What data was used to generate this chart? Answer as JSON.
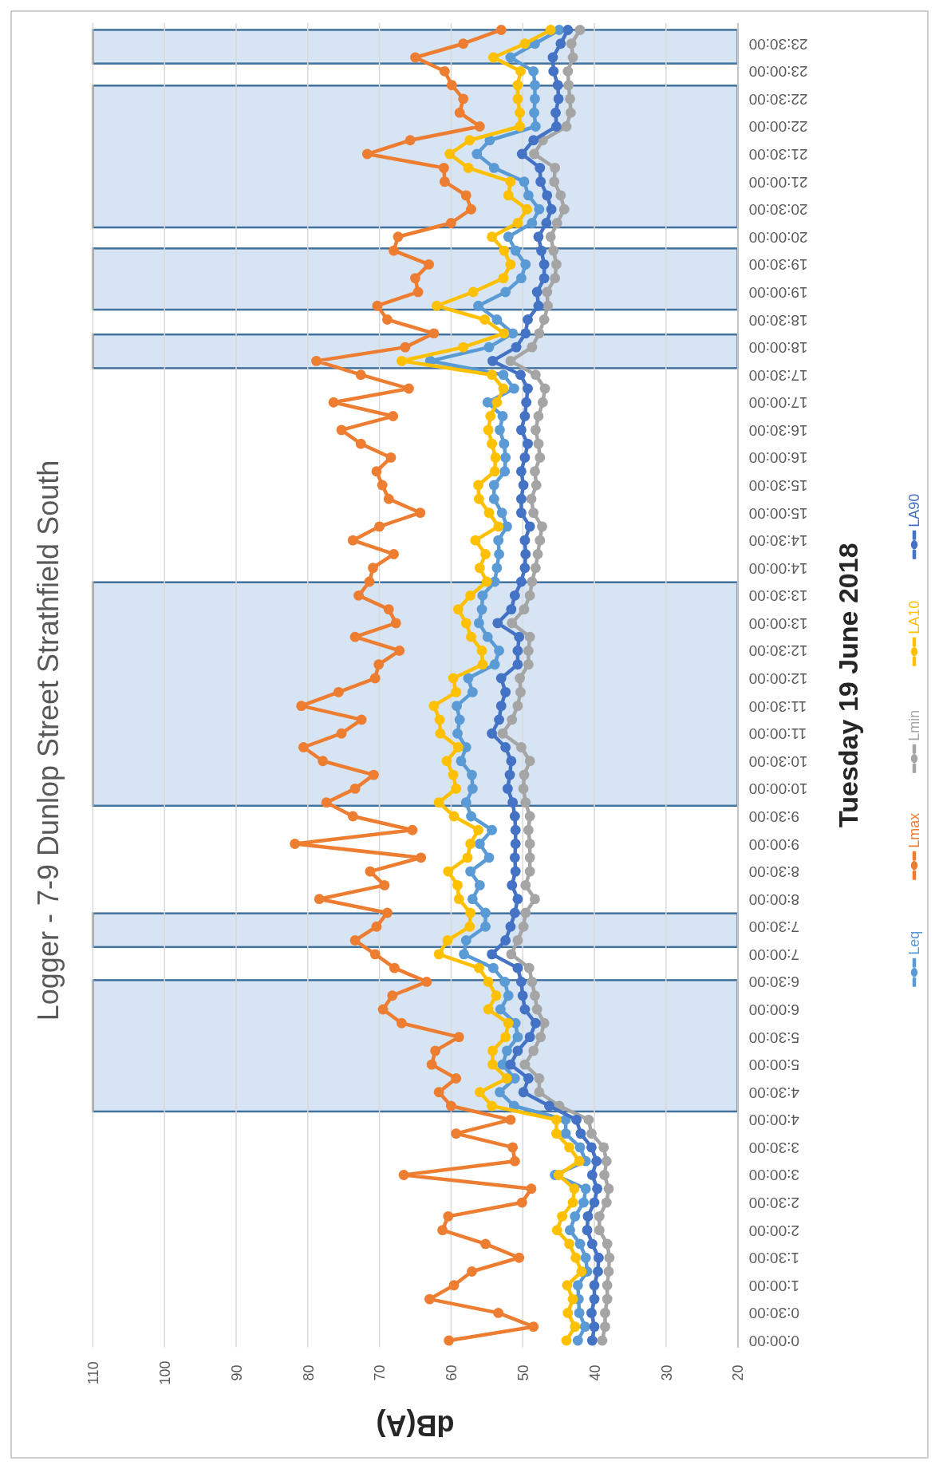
{
  "chart_data": {
    "type": "line",
    "title": "Logger - 7-9 Dunlop Street Strathfield South",
    "xlabel": "dB(A)",
    "ylabel": "Tuesday 19 June 2018",
    "xlim": [
      110,
      20
    ],
    "xticks": [
      110,
      100,
      90,
      80,
      70,
      60,
      50,
      40,
      30,
      20
    ],
    "ylim": [
      -0.125,
      23.875
    ],
    "yticks": [
      {
        "value": 0,
        "label": "0:00:00"
      },
      {
        "value": 0.5,
        "label": "0:30:00"
      },
      {
        "value": 1,
        "label": "1:00:00"
      },
      {
        "value": 1.5,
        "label": "1:30:00"
      },
      {
        "value": 2,
        "label": "2:00:00"
      },
      {
        "value": 2.5,
        "label": "2:30:00"
      },
      {
        "value": 3,
        "label": "3:00:00"
      },
      {
        "value": 3.5,
        "label": "3:30:00"
      },
      {
        "value": 4,
        "label": "4:00:00"
      },
      {
        "value": 4.5,
        "label": "4:30:00"
      },
      {
        "value": 5,
        "label": "5:00:00"
      },
      {
        "value": 5.5,
        "label": "5:30:00"
      },
      {
        "value": 6,
        "label": "6:00:00"
      },
      {
        "value": 6.5,
        "label": "6:30:00"
      },
      {
        "value": 7,
        "label": "7:00:00"
      },
      {
        "value": 7.5,
        "label": "7:30:00"
      },
      {
        "value": 8,
        "label": "8:00:00"
      },
      {
        "value": 8.5,
        "label": "8:30:00"
      },
      {
        "value": 9,
        "label": "9:00:00"
      },
      {
        "value": 9.5,
        "label": "9:30:00"
      },
      {
        "value": 10,
        "label": "10:00:00"
      },
      {
        "value": 10.5,
        "label": "10:30:00"
      },
      {
        "value": 11,
        "label": "11:00:00"
      },
      {
        "value": 11.5,
        "label": "11:30:00"
      },
      {
        "value": 12,
        "label": "12:00:00"
      },
      {
        "value": 12.5,
        "label": "12:30:00"
      },
      {
        "value": 13,
        "label": "13:00:00"
      },
      {
        "value": 13.5,
        "label": "13:30:00"
      },
      {
        "value": 14,
        "label": "14:00:00"
      },
      {
        "value": 14.5,
        "label": "14:30:00"
      },
      {
        "value": 15,
        "label": "15:00:00"
      },
      {
        "value": 15.5,
        "label": "15:30:00"
      },
      {
        "value": 16,
        "label": "16:00:00"
      },
      {
        "value": 16.5,
        "label": "16:30:00"
      },
      {
        "value": 17,
        "label": "17:00:00"
      },
      {
        "value": 17.5,
        "label": "17:30:00"
      },
      {
        "value": 18,
        "label": "18:00:00"
      },
      {
        "value": 18.5,
        "label": "18:30:00"
      },
      {
        "value": 19,
        "label": "19:00:00"
      },
      {
        "value": 19.5,
        "label": "19:30:00"
      },
      {
        "value": 20,
        "label": "20:00:00"
      },
      {
        "value": 20.5,
        "label": "20:30:00"
      },
      {
        "value": 21,
        "label": "21:00:00"
      },
      {
        "value": 21.5,
        "label": "21:30:00"
      },
      {
        "value": 22,
        "label": "22:00:00"
      },
      {
        "value": 22.5,
        "label": "22:30:00"
      },
      {
        "value": 23,
        "label": "23:00:00"
      },
      {
        "value": 23.5,
        "label": "23:30:00"
      }
    ],
    "grid": "x",
    "legend": "right",
    "marker": "circle",
    "line_style": "solid",
    "bands": [
      {
        "axis": "y",
        "from": 4.15,
        "to": 6.53,
        "color": "#d6e4f4"
      },
      {
        "axis": "y",
        "from": 7.13,
        "to": 7.74,
        "color": "#d6e4f4"
      },
      {
        "axis": "y",
        "from": 9.69,
        "to": 13.74,
        "color": "#d6e4f4"
      },
      {
        "axis": "y",
        "from": 17.62,
        "to": 18.23,
        "color": "#d6e4f4"
      },
      {
        "axis": "y",
        "from": 18.68,
        "to": 19.79,
        "color": "#d6e4f4"
      },
      {
        "axis": "y",
        "from": 20.17,
        "to": 22.74,
        "color": "#d6e4f4"
      },
      {
        "axis": "y",
        "from": 23.14,
        "to": 23.75,
        "color": "#d6e4f4"
      }
    ],
    "series": [
      {
        "name": "Leq",
        "color": "#5b9bd5",
        "x": [
          42.3,
          41.3,
          42.1,
          42.2,
          42.3,
          41.0,
          41.2,
          42.0,
          43.4,
          42.7,
          41.5,
          41.2,
          45.5,
          41.2,
          42.0,
          44.0,
          44.0,
          51.2,
          53.2,
          51.1,
          52.8,
          52.2,
          50.7,
          51.0,
          53.1,
          52.0,
          52.5,
          54.1,
          58.2,
          57.9,
          55.2,
          55.2,
          57.0,
          56.0,
          57.3,
          54.7,
          56.0,
          54.3,
          57.2,
          57.9,
          57.0,
          57.1,
          58.6,
          57.9,
          59.1,
          58.8,
          59.2,
          57.0,
          57.6,
          53.9,
          53.3,
          54.9,
          56.1,
          55.7,
          55.6,
          53.9,
          53.6,
          53.3,
          53.4,
          52.2,
          52.9,
          54.0,
          54.0,
          52.5,
          52.4,
          52.6,
          53.2,
          52.8,
          54.9,
          51.2,
          52.7,
          62.9,
          54.7,
          51.4,
          53.6,
          56.2,
          52.4,
          50.2,
          49.6,
          51.0,
          52.0,
          48.7,
          47.7,
          49.2,
          49.8,
          54.0,
          56.4,
          54.6,
          48.2,
          48.4,
          48.3,
          48.3,
          48.5,
          51.7,
          48.3,
          44.9
        ],
        "values": [
          0,
          0.25,
          0.5,
          0.75,
          1,
          1.25,
          1.5,
          1.75,
          2,
          2.25,
          2.5,
          2.75,
          3,
          3.25,
          3.5,
          3.75,
          4,
          4.25,
          4.5,
          4.75,
          5,
          5.25,
          5.5,
          5.75,
          6,
          6.25,
          6.5,
          6.75,
          7,
          7.25,
          7.5,
          7.75,
          8,
          8.25,
          8.5,
          8.75,
          9,
          9.25,
          9.5,
          9.75,
          10,
          10.25,
          10.5,
          10.75,
          11,
          11.25,
          11.5,
          11.75,
          12,
          12.25,
          12.5,
          12.75,
          13,
          13.25,
          13.5,
          13.75,
          14,
          14.25,
          14.5,
          14.75,
          15,
          15.25,
          15.5,
          15.75,
          16,
          16.25,
          16.5,
          16.75,
          17,
          17.25,
          17.5,
          17.75,
          18,
          18.25,
          18.5,
          18.75,
          19,
          19.25,
          19.5,
          19.75,
          20,
          20.25,
          20.5,
          20.75,
          21,
          21.25,
          21.5,
          21.75,
          22,
          22.25,
          22.5,
          22.75,
          23,
          23.25,
          23.5,
          23.75
        ]
      },
      {
        "name": "Lmax",
        "color": "#ed7d31",
        "x": [
          60.3,
          48.5,
          53.4,
          63.0,
          59.6,
          57.1,
          50.5,
          55.2,
          61.2,
          60.4,
          50.1,
          48.8,
          66.6,
          51.1,
          51.4,
          59.3,
          51.7,
          60.0,
          61.7,
          59.3,
          62.7,
          62.2,
          58.9,
          66.9,
          69.5,
          68.2,
          63.4,
          67.9,
          70.6,
          73.4,
          70.4,
          68.9,
          78.4,
          69.3,
          71.3,
          64.2,
          81.8,
          65.4,
          73.7,
          77.4,
          73.4,
          70.8,
          77.9,
          80.6,
          75.3,
          72.5,
          80.9,
          75.7,
          70.6,
          70.1,
          67.2,
          73.4,
          67.7,
          68.7,
          72.9,
          71.4,
          70.9,
          68.0,
          73.7,
          70.0,
          64.3,
          68.7,
          69.6,
          70.4,
          68.4,
          72.6,
          75.3,
          68.1,
          76.4,
          65.9,
          72.6,
          78.8,
          66.4,
          62.4,
          68.9,
          70.3,
          64.6,
          65.0,
          63.1,
          68.0,
          67.4,
          60.0,
          57.2,
          57.9,
          60.9,
          61.0,
          71.7,
          65.7,
          56.0,
          58.8,
          58.3,
          59.9,
          60.9,
          65.0,
          58.3,
          53.0
        ],
        "values": [
          0,
          0.25,
          0.5,
          0.75,
          1,
          1.25,
          1.5,
          1.75,
          2,
          2.25,
          2.5,
          2.75,
          3,
          3.25,
          3.5,
          3.75,
          4,
          4.25,
          4.5,
          4.75,
          5,
          5.25,
          5.5,
          5.75,
          6,
          6.25,
          6.5,
          6.75,
          7,
          7.25,
          7.5,
          7.75,
          8,
          8.25,
          8.5,
          8.75,
          9,
          9.25,
          9.5,
          9.75,
          10,
          10.25,
          10.5,
          10.75,
          11,
          11.25,
          11.5,
          11.75,
          12,
          12.25,
          12.5,
          12.75,
          13,
          13.25,
          13.5,
          13.75,
          14,
          14.25,
          14.5,
          14.75,
          15,
          15.25,
          15.5,
          15.75,
          16,
          16.25,
          16.5,
          16.75,
          17,
          17.25,
          17.5,
          17.75,
          18,
          18.25,
          18.5,
          18.75,
          19,
          19.25,
          19.5,
          19.75,
          20,
          20.25,
          20.5,
          20.75,
          21,
          21.25,
          21.5,
          21.75,
          22,
          22.25,
          22.5,
          22.75,
          23,
          23.25,
          23.5,
          23.75
        ]
      },
      {
        "name": "Lmin",
        "color": "#a5a5a5",
        "x": [
          38.9,
          38.5,
          38.5,
          38.2,
          38.2,
          38.0,
          37.9,
          38.2,
          39.3,
          39.3,
          38.3,
          38.0,
          38.6,
          38.3,
          38.7,
          40.4,
          40.8,
          44.9,
          47.7,
          47.7,
          49.7,
          48.5,
          47.5,
          47.0,
          48.0,
          48.3,
          48.7,
          49.1,
          51.6,
          50.7,
          49.9,
          49.6,
          48.3,
          49.6,
          49.0,
          49.0,
          49.0,
          49.2,
          49.0,
          49.6,
          49.9,
          49.8,
          49.0,
          50.2,
          52.8,
          51.5,
          50.7,
          50.3,
          50.4,
          49.2,
          49.2,
          49.0,
          51.5,
          49.8,
          49.0,
          48.7,
          48.2,
          47.9,
          47.6,
          47.3,
          48.5,
          48.8,
          48.1,
          48.3,
          47.6,
          47.8,
          48.2,
          47.8,
          47.2,
          46.9,
          48.2,
          51.7,
          48.7,
          47.7,
          47.0,
          46.5,
          46.6,
          45.5,
          45.3,
          45.7,
          46.1,
          45.2,
          44.2,
          44.7,
          45.6,
          45.5,
          48.4,
          47.2,
          43.9,
          43.3,
          43.4,
          43.6,
          43.7,
          43.0,
          43.2,
          42.0
        ],
        "values": [
          0,
          0.25,
          0.5,
          0.75,
          1,
          1.25,
          1.5,
          1.75,
          2,
          2.25,
          2.5,
          2.75,
          3,
          3.25,
          3.5,
          3.75,
          4,
          4.25,
          4.5,
          4.75,
          5,
          5.25,
          5.5,
          5.75,
          6,
          6.25,
          6.5,
          6.75,
          7,
          7.25,
          7.5,
          7.75,
          8,
          8.25,
          8.5,
          8.75,
          9,
          9.25,
          9.5,
          9.75,
          10,
          10.25,
          10.5,
          10.75,
          11,
          11.25,
          11.5,
          11.75,
          12,
          12.25,
          12.5,
          12.75,
          13,
          13.25,
          13.5,
          13.75,
          14,
          14.25,
          14.5,
          14.75,
          15,
          15.25,
          15.5,
          15.75,
          16,
          16.25,
          16.5,
          16.75,
          17,
          17.25,
          17.5,
          17.75,
          18,
          18.25,
          18.5,
          18.75,
          19,
          19.25,
          19.5,
          19.75,
          20,
          20.25,
          20.5,
          20.75,
          21,
          21.25,
          21.5,
          21.75,
          22,
          22.25,
          22.5,
          22.75,
          23,
          23.25,
          23.5,
          23.75
        ]
      },
      {
        "name": "LA10",
        "color": "#ffc000",
        "x": [
          43.9,
          42.7,
          43.7,
          43.0,
          43.8,
          41.8,
          42.6,
          43.5,
          45.2,
          44.5,
          43.0,
          42.8,
          45.0,
          42.1,
          43.5,
          45.3,
          45.3,
          54.3,
          56.0,
          52.2,
          54.2,
          54.2,
          52.4,
          52.0,
          54.8,
          53.7,
          54.8,
          56.1,
          61.7,
          60.5,
          57.4,
          57.3,
          58.9,
          59.1,
          60.4,
          57.7,
          57.3,
          56.2,
          59.6,
          61.7,
          59.3,
          59.7,
          60.6,
          59.0,
          61.5,
          61.6,
          62.4,
          59.3,
          59.7,
          55.6,
          55.7,
          57.2,
          57.9,
          59.0,
          57.3,
          55.0,
          56.0,
          55.2,
          56.6,
          53.4,
          54.7,
          56.1,
          56.2,
          53.9,
          53.8,
          54.3,
          54.8,
          54.5,
          53.6,
          52.7,
          54.3,
          66.9,
          58.3,
          52.6,
          55.3,
          62.0,
          56.9,
          52.7,
          51.7,
          52.6,
          54.3,
          50.7,
          49.4,
          52.0,
          51.7,
          57.6,
          60.2,
          57.4,
          50.4,
          50.4,
          50.7,
          50.7,
          50.3,
          54.1,
          49.7,
          46.1
        ],
        "values": [
          0,
          0.25,
          0.5,
          0.75,
          1,
          1.25,
          1.5,
          1.75,
          2,
          2.25,
          2.5,
          2.75,
          3,
          3.25,
          3.5,
          3.75,
          4,
          4.25,
          4.5,
          4.75,
          5,
          5.25,
          5.5,
          5.75,
          6,
          6.25,
          6.5,
          6.75,
          7,
          7.25,
          7.5,
          7.75,
          8,
          8.25,
          8.5,
          8.75,
          9,
          9.25,
          9.5,
          9.75,
          10,
          10.25,
          10.5,
          10.75,
          11,
          11.25,
          11.5,
          11.75,
          12,
          12.25,
          12.5,
          12.75,
          13,
          13.25,
          13.5,
          13.75,
          14,
          14.25,
          14.5,
          14.75,
          15,
          15.25,
          15.5,
          15.75,
          16,
          16.25,
          16.5,
          16.75,
          17,
          17.25,
          17.5,
          17.75,
          18,
          18.25,
          18.5,
          18.75,
          19,
          19.25,
          19.5,
          19.75,
          20,
          20.25,
          20.5,
          20.75,
          21,
          21.25,
          21.5,
          21.75,
          22,
          22.25,
          22.5,
          22.75,
          23,
          23.25,
          23.5,
          23.75
        ]
      },
      {
        "name": "LA90",
        "color": "#4472c4",
        "x": [
          40.3,
          40.0,
          40.4,
          40.0,
          40.0,
          39.5,
          39.4,
          40.3,
          41.0,
          40.9,
          40.0,
          39.6,
          40.3,
          39.7,
          40.4,
          41.9,
          42.5,
          46.3,
          49.9,
          49.2,
          51.7,
          50.7,
          49.0,
          48.2,
          49.7,
          50.0,
          50.2,
          50.7,
          54.3,
          52.4,
          51.7,
          51.1,
          50.7,
          51.5,
          51.0,
          51.1,
          51.0,
          51.0,
          51.1,
          51.4,
          52.1,
          51.8,
          51.6,
          52.4,
          54.3,
          53.3,
          53.0,
          52.4,
          53.0,
          50.7,
          50.7,
          50.5,
          53.5,
          51.6,
          51.1,
          50.2,
          49.7,
          49.6,
          49.7,
          49.0,
          50.2,
          50.2,
          49.9,
          50.2,
          49.7,
          49.3,
          50.2,
          49.7,
          49.5,
          49.3,
          50.3,
          54.2,
          50.9,
          49.6,
          49.3,
          47.8,
          48.0,
          47.0,
          47.0,
          47.4,
          47.8,
          46.7,
          46.0,
          46.6,
          47.5,
          47.6,
          50.1,
          48.5,
          45.3,
          45.4,
          45.0,
          45.1,
          45.7,
          45.8,
          44.7,
          43.7
        ],
        "values": [
          0,
          0.25,
          0.5,
          0.75,
          1,
          1.25,
          1.5,
          1.75,
          2,
          2.25,
          2.5,
          2.75,
          3,
          3.25,
          3.5,
          3.75,
          4,
          4.25,
          4.5,
          4.75,
          5,
          5.25,
          5.5,
          5.75,
          6,
          6.25,
          6.5,
          6.75,
          7,
          7.25,
          7.5,
          7.75,
          8,
          8.25,
          8.5,
          8.75,
          9,
          9.25,
          9.5,
          9.75,
          10,
          10.25,
          10.5,
          10.75,
          11,
          11.25,
          11.5,
          11.75,
          12,
          12.25,
          12.5,
          12.75,
          13,
          13.25,
          13.5,
          13.75,
          14,
          14.25,
          14.5,
          14.75,
          15,
          15.25,
          15.5,
          15.75,
          16,
          16.25,
          16.5,
          16.75,
          17,
          17.25,
          17.5,
          17.75,
          18,
          18.25,
          18.5,
          18.75,
          19,
          19.25,
          19.5,
          19.75,
          20,
          20.25,
          20.5,
          20.75,
          21,
          21.25,
          21.5,
          21.75,
          22,
          22.25,
          22.5,
          22.75,
          23,
          23.25,
          23.5,
          23.75
        ]
      }
    ]
  }
}
